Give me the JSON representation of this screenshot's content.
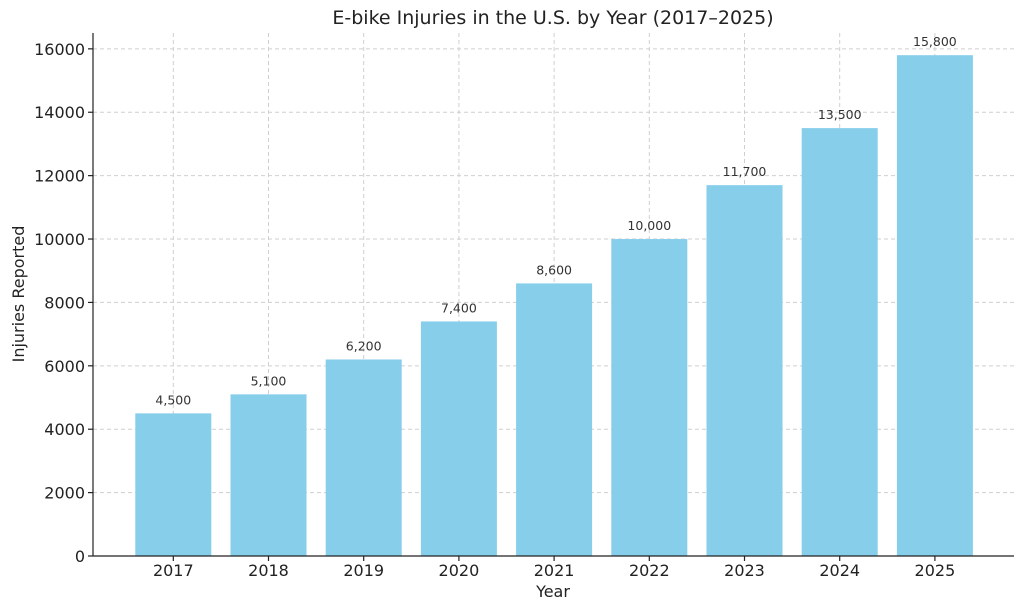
{
  "chart_data": {
    "type": "bar",
    "title": "E-bike Injuries in the U.S. by Year (2017–2025)",
    "xlabel": "Year",
    "ylabel": "Injuries Reported",
    "categories": [
      "2017",
      "2018",
      "2019",
      "2020",
      "2021",
      "2022",
      "2023",
      "2024",
      "2025"
    ],
    "values": [
      4500,
      5100,
      6200,
      7400,
      8600,
      10000,
      11700,
      13500,
      15800
    ],
    "data_labels": [
      "4,500",
      "5,100",
      "6,200",
      "7,400",
      "8,600",
      "10,000",
      "11,700",
      "13,500",
      "15,800"
    ],
    "ylim": [
      0,
      16500
    ],
    "yticks": [
      0,
      2000,
      4000,
      6000,
      8000,
      10000,
      12000,
      14000,
      16000
    ],
    "ytick_labels": [
      "0",
      "2000",
      "4000",
      "6000",
      "8000",
      "10000",
      "12000",
      "14000",
      "16000"
    ],
    "grid": true,
    "bar_color": "#87CEEB"
  }
}
